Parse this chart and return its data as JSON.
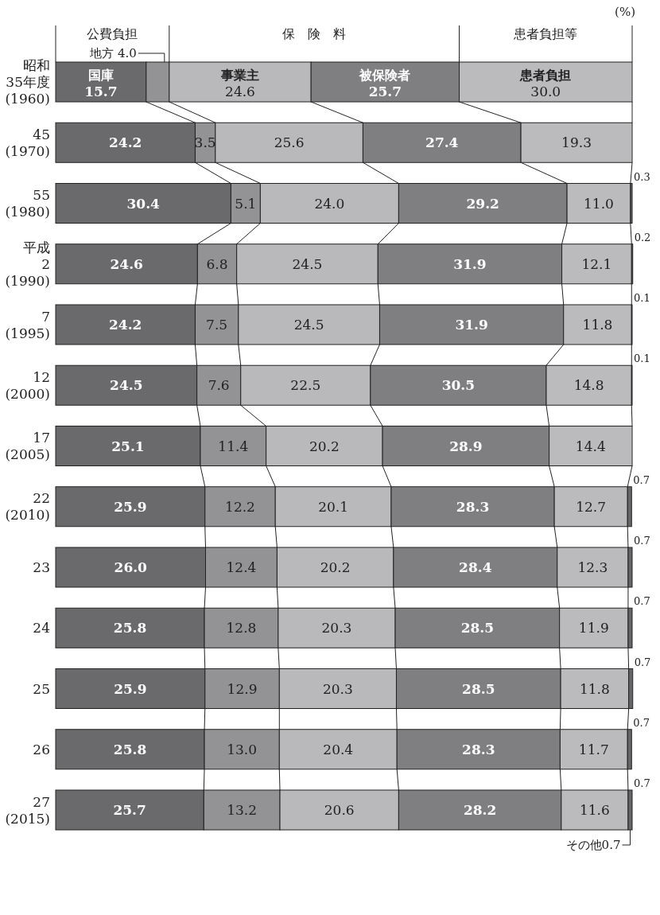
{
  "chart_data": {
    "type": "bar",
    "orientation": "horizontal",
    "stacked": true,
    "xlim": [
      0,
      100
    ],
    "tick_labels": "y",
    "categories": [
      "昭和\n35年度\n(1960)",
      "45\n(1970)",
      "55\n(1980)",
      "平成\n2\n(1990)",
      "7\n(1995)",
      "12\n(2000)",
      "17\n(2005)",
      "22\n(2010)",
      "23",
      "24",
      "25",
      "26",
      "27\n(2015)"
    ],
    "annotations": [
      "(%)",
      "公費負担",
      "保　険　料",
      "患者負担等"
    ],
    "series": [
      {
        "name": "国庫",
        "color": "#6a6a6d",
        "values": [
          15.7,
          24.2,
          30.4,
          24.6,
          24.2,
          24.5,
          25.1,
          25.9,
          26.0,
          25.8,
          25.9,
          25.8,
          25.7
        ],
        "value_labels": [
          "15.7",
          "24.2",
          "30.4",
          "24.6",
          "24.2",
          "24.5",
          "25.1",
          "25.9",
          "26.0",
          "25.8",
          "25.9",
          "25.8",
          "25.7"
        ]
      },
      {
        "name": "地方",
        "color": "#939396",
        "values": [
          4.0,
          3.5,
          5.1,
          6.8,
          7.5,
          7.6,
          11.4,
          12.2,
          12.4,
          12.8,
          12.9,
          13.0,
          13.2
        ],
        "value_labels": [
          "4.0",
          "3.5",
          "5.1",
          "6.8",
          "7.5",
          "7.6",
          "11.4",
          "12.2",
          "12.4",
          "12.8",
          "12.9",
          "13.0",
          "13.2"
        ]
      },
      {
        "name": "事業主",
        "color": "#b9b9bc",
        "values": [
          24.6,
          25.6,
          24.0,
          24.5,
          24.5,
          22.5,
          20.2,
          20.1,
          20.2,
          20.3,
          20.3,
          20.4,
          20.6
        ],
        "value_labels": [
          "24.6",
          "25.6",
          "24.0",
          "24.5",
          "24.5",
          "22.5",
          "20.2",
          "20.1",
          "20.2",
          "20.3",
          "20.3",
          "20.4",
          "20.6"
        ]
      },
      {
        "name": "被保険者",
        "color": "#7f7f82",
        "values": [
          25.7,
          27.4,
          29.2,
          31.9,
          31.9,
          30.5,
          28.9,
          28.3,
          28.4,
          28.5,
          28.5,
          28.3,
          28.2
        ],
        "value_labels": [
          "25.7",
          "27.4",
          "29.2",
          "31.9",
          "31.9",
          "30.5",
          "28.9",
          "28.3",
          "28.4",
          "28.5",
          "28.5",
          "28.3",
          "28.2"
        ]
      },
      {
        "name": "患者負担",
        "color": "#bbbbbe",
        "values": [
          30.0,
          19.3,
          11.0,
          12.1,
          11.8,
          14.8,
          14.4,
          12.7,
          12.3,
          11.9,
          11.8,
          11.7,
          11.6
        ],
        "value_labels": [
          "30.0",
          "19.3",
          "11.0",
          "12.1",
          "11.8",
          "14.8",
          "14.4",
          "12.7",
          "12.3",
          "11.9",
          "11.8",
          "11.7",
          "11.6"
        ]
      },
      {
        "name": "その他",
        "color": "#666669",
        "values": [
          null,
          null,
          0.3,
          0.2,
          0.1,
          0.1,
          null,
          0.7,
          0.7,
          0.7,
          0.7,
          0.7,
          0.7
        ],
        "value_labels": [
          null,
          null,
          "0.3",
          "0.2",
          "0.1",
          "0.1",
          null,
          "0.7",
          "0.7",
          "0.7",
          "0.7",
          "0.7",
          "0.7"
        ]
      }
    ]
  }
}
